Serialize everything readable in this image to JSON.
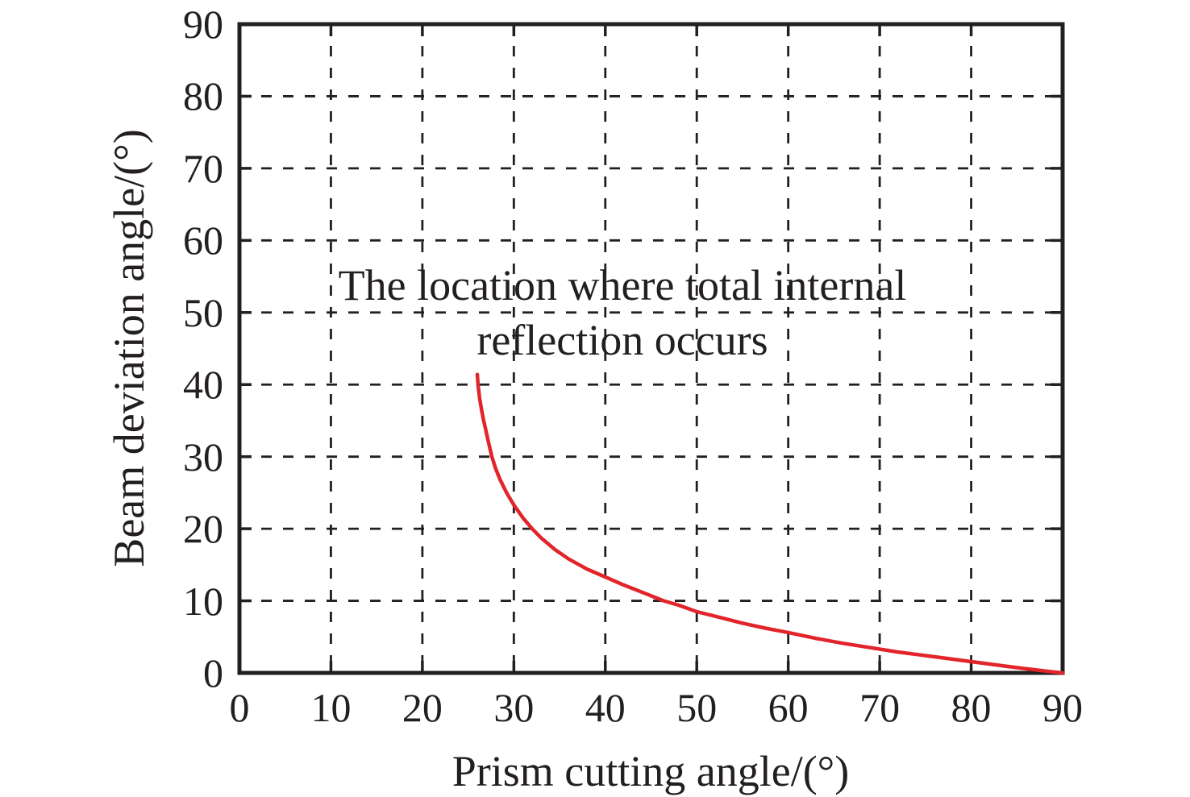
{
  "chart_data": {
    "type": "line",
    "title": "",
    "xlabel": "Prism cutting angle/(°)",
    "ylabel": "Beam deviation angle/(°)",
    "xlim": [
      0,
      90
    ],
    "ylim": [
      0,
      90
    ],
    "x_ticks": [
      "0",
      "10",
      "20",
      "30",
      "40",
      "50",
      "60",
      "70",
      "80",
      "90"
    ],
    "y_ticks": [
      "0",
      "10",
      "20",
      "30",
      "40",
      "50",
      "60",
      "70",
      "80",
      "90"
    ],
    "grid": "dashed-both-axes",
    "legend": "none",
    "annotation": {
      "line1": "The location where total internal",
      "line2": "reflection occurs"
    },
    "series": [
      {
        "name": "beam-deviation-curve",
        "color": "#e2242b",
        "points": [
          [
            26.0,
            41.4
          ],
          [
            26.1,
            39.8
          ],
          [
            26.25,
            38.2
          ],
          [
            26.45,
            36.6
          ],
          [
            26.7,
            35.0
          ],
          [
            27.0,
            33.3
          ],
          [
            27.3,
            31.6
          ],
          [
            27.6,
            30.0
          ],
          [
            28.0,
            28.4
          ],
          [
            28.5,
            26.8
          ],
          [
            29.2,
            25.0
          ],
          [
            30.0,
            23.3
          ],
          [
            31.0,
            21.5
          ],
          [
            32.0,
            20.0
          ],
          [
            33.0,
            18.7
          ],
          [
            34.5,
            17.1
          ],
          [
            36.0,
            15.8
          ],
          [
            38.0,
            14.4
          ],
          [
            40.0,
            13.3
          ],
          [
            42.0,
            12.2
          ],
          [
            44.0,
            11.2
          ],
          [
            46.4,
            10.0
          ],
          [
            48.0,
            9.4
          ],
          [
            50.0,
            8.5
          ],
          [
            52.5,
            7.7
          ],
          [
            55.0,
            6.9
          ],
          [
            57.5,
            6.2
          ],
          [
            60.0,
            5.6
          ],
          [
            63.0,
            4.8
          ],
          [
            66.0,
            4.1
          ],
          [
            69.0,
            3.5
          ],
          [
            72.0,
            2.9
          ],
          [
            75.0,
            2.4
          ],
          [
            78.0,
            1.9
          ],
          [
            81.0,
            1.4
          ],
          [
            84.0,
            0.9
          ],
          [
            86.5,
            0.5
          ],
          [
            88.5,
            0.2
          ],
          [
            90.0,
            0.0
          ]
        ]
      }
    ]
  },
  "colors": {
    "curve": "#e2242b",
    "axis": "#231f20",
    "background": "#ffffff"
  }
}
